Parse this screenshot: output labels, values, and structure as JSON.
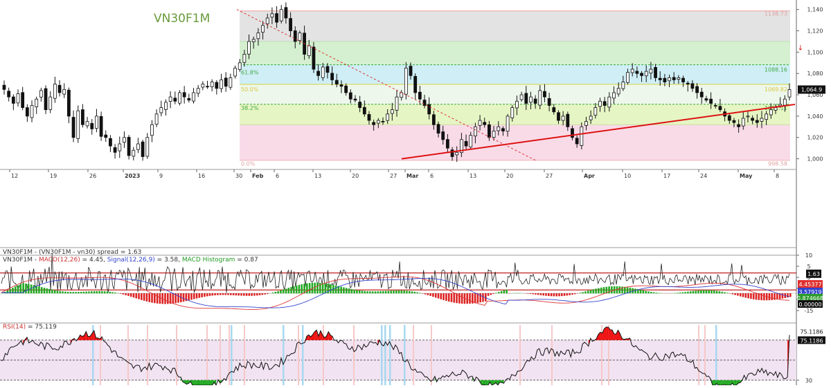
{
  "chart_data": [
    {
      "panel": "price",
      "type": "candlestick",
      "title": "VN30F1M",
      "ylim": [
        990,
        1145
      ],
      "y_ticks": [
        1000,
        1020,
        1040,
        1060,
        1080,
        1100,
        1120,
        1140
      ],
      "x_ticks": [
        "12",
        "19",
        "26",
        "2023",
        "9",
        "16",
        "30",
        "Feb",
        "6",
        "13",
        "20",
        "27",
        "Mar",
        "6",
        "13",
        "20",
        "27",
        "Apr",
        "10",
        "17",
        "24",
        "May",
        "8"
      ],
      "last_price_label": "1,064.9",
      "fib_labels": {
        "top": "1138.73",
        "f618": "61.8%",
        "f618_value": "1088.16",
        "f50": "50.0%",
        "f50_value": "1069.82",
        "f382": "38.2%",
        "f382_value": "1051.11",
        "bottom_pct": "0.0%",
        "bottom_value": "998.58"
      },
      "fib_levels": [
        1138.7,
        1110,
        1088.2,
        1069.8,
        1051.1,
        1032,
        998.6
      ],
      "closes": [
        1065,
        1058,
        1052,
        1061,
        1048,
        1040,
        1050,
        1056,
        1064,
        1046,
        1058,
        1070,
        1062,
        1065,
        1040,
        1020,
        1045,
        1032,
        1035,
        1028,
        1040,
        1021,
        1020,
        1012,
        1006,
        1014,
        1020,
        1003,
        1008,
        1014,
        1002,
        1020,
        1032,
        1042,
        1048,
        1053,
        1058,
        1054,
        1062,
        1058,
        1055,
        1062,
        1066,
        1070,
        1068,
        1072,
        1066,
        1074,
        1068,
        1076,
        1085,
        1090,
        1098,
        1110,
        1112,
        1118,
        1125,
        1132,
        1136,
        1128,
        1140,
        1132,
        1120,
        1110,
        1118,
        1098,
        1106,
        1084,
        1078,
        1086,
        1081,
        1074,
        1070,
        1068,
        1062,
        1056,
        1055,
        1048,
        1042,
        1036,
        1032,
        1036,
        1035,
        1042,
        1046,
        1058,
        1062,
        1085,
        1078,
        1062,
        1056,
        1050,
        1042,
        1032,
        1024,
        1018,
        1010,
        1002,
        1006,
        1018,
        1012,
        1022,
        1030,
        1036,
        1032,
        1020,
        1026,
        1030,
        1026,
        1040,
        1048,
        1054,
        1060,
        1052,
        1058,
        1052,
        1064,
        1058,
        1050,
        1044,
        1036,
        1040,
        1030,
        1020,
        1014,
        1030,
        1035,
        1040,
        1048,
        1054,
        1050,
        1058,
        1062,
        1066,
        1072,
        1081,
        1084,
        1080,
        1078,
        1082,
        1084,
        1076,
        1074,
        1072,
        1076,
        1074,
        1076,
        1072,
        1070,
        1066,
        1062,
        1058,
        1055,
        1052,
        1050,
        1046,
        1040,
        1036,
        1034,
        1030,
        1038,
        1040,
        1036,
        1034,
        1038,
        1042,
        1046,
        1048,
        1051,
        1056,
        1064.9
      ],
      "channel_upper": [
        [
          322,
          1140
        ],
        [
          775,
          998
        ]
      ],
      "trendline": [
        [
          580,
          1000
        ],
        [
          1148,
          1051
        ]
      ]
    },
    {
      "panel": "spread",
      "type": "line",
      "legend": "VN30F1M - (VN30F1M - vn30) spread = 1.63",
      "y_ticks": [
        10,
        5,
        0,
        -5,
        -10,
        -15
      ],
      "ylim": [
        -18,
        13
      ],
      "bands": [
        2,
        -5.7
      ],
      "last_label": "1.63"
    },
    {
      "panel": "macd",
      "type": "line+bar",
      "legend_parts": [
        {
          "text": "VN30F1M - ",
          "color": "#333333"
        },
        {
          "text": "MACD(12,26)",
          "color": "#cc3333"
        },
        {
          "text": " = 4.45, ",
          "color": "#333333"
        },
        {
          "text": "Signal(12,26,9)",
          "color": "#3344cc"
        },
        {
          "text": " = 3.58, ",
          "color": "#333333"
        },
        {
          "text": "MACD Histogram",
          "color": "#229922"
        },
        {
          "text": " = 0.87",
          "color": "#333333"
        }
      ],
      "last_labels": [
        {
          "text": "4.45377",
          "bg": "#e03030"
        },
        {
          "text": "3.57919",
          "bg": "#3344cc"
        },
        {
          "text": "0.874668",
          "bg": "#2a9a2a"
        },
        {
          "text": "0.00000",
          "bg": "#111111"
        }
      ]
    },
    {
      "panel": "rsi",
      "type": "line",
      "legend_parts": [
        {
          "text": "RSI(14)",
          "color": "#cc3333"
        },
        {
          "text": " = 75.119",
          "color": "#333333"
        }
      ],
      "y_ticks": [
        30
      ],
      "ylim": [
        25,
        85
      ],
      "bands": [
        70,
        50,
        30
      ],
      "last_labels": [
        "75.1186",
        "75.1186"
      ]
    }
  ]
}
